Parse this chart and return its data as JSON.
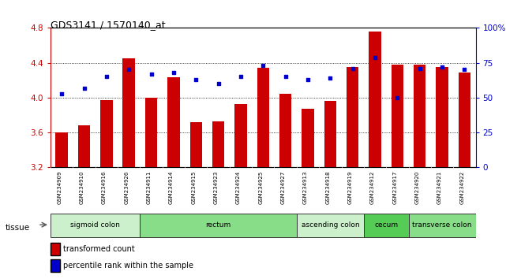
{
  "title": "GDS3141 / 1570140_at",
  "samples": [
    "GSM234909",
    "GSM234910",
    "GSM234916",
    "GSM234926",
    "GSM234911",
    "GSM234914",
    "GSM234915",
    "GSM234923",
    "GSM234924",
    "GSM234925",
    "GSM234927",
    "GSM234913",
    "GSM234918",
    "GSM234919",
    "GSM234912",
    "GSM234917",
    "GSM234920",
    "GSM234921",
    "GSM234922"
  ],
  "bar_values": [
    3.6,
    3.68,
    3.97,
    4.45,
    4.0,
    4.23,
    3.72,
    3.73,
    3.93,
    4.34,
    4.04,
    3.87,
    3.96,
    4.35,
    4.76,
    4.38,
    4.38,
    4.35,
    4.29
  ],
  "dot_values": [
    53,
    57,
    65,
    70,
    67,
    68,
    63,
    60,
    65,
    73,
    65,
    63,
    64,
    71,
    79,
    50,
    71,
    72,
    70
  ],
  "ylim_left": [
    3.2,
    4.8
  ],
  "ylim_right": [
    0,
    100
  ],
  "yticks_left": [
    3.2,
    3.6,
    4.0,
    4.4,
    4.8
  ],
  "ytick_labels_left": [
    "3.2",
    "3.6",
    "4.0",
    "4.4",
    "4.8"
  ],
  "yticks_right": [
    0,
    25,
    50,
    75,
    100
  ],
  "ytick_labels_right": [
    "0",
    "25",
    "50",
    "75",
    "100%"
  ],
  "bar_color": "#cc0000",
  "dot_color": "#0000cc",
  "bar_bottom": 3.2,
  "tissue_groups": [
    {
      "label": "sigmoid colon",
      "start": 0,
      "end": 3,
      "color": "#ccf0cc"
    },
    {
      "label": "rectum",
      "start": 4,
      "end": 10,
      "color": "#88dd88"
    },
    {
      "label": "ascending colon",
      "start": 11,
      "end": 13,
      "color": "#ccf0cc"
    },
    {
      "label": "cecum",
      "start": 14,
      "end": 15,
      "color": "#55cc55"
    },
    {
      "label": "transverse colon",
      "start": 16,
      "end": 18,
      "color": "#88dd88"
    }
  ],
  "left_color": "#cc0000",
  "right_color": "#0000cc",
  "grid_dotted_values": [
    3.6,
    4.0,
    4.4
  ],
  "background_color": "#ffffff",
  "tick_area_color": "#c8c8c8"
}
